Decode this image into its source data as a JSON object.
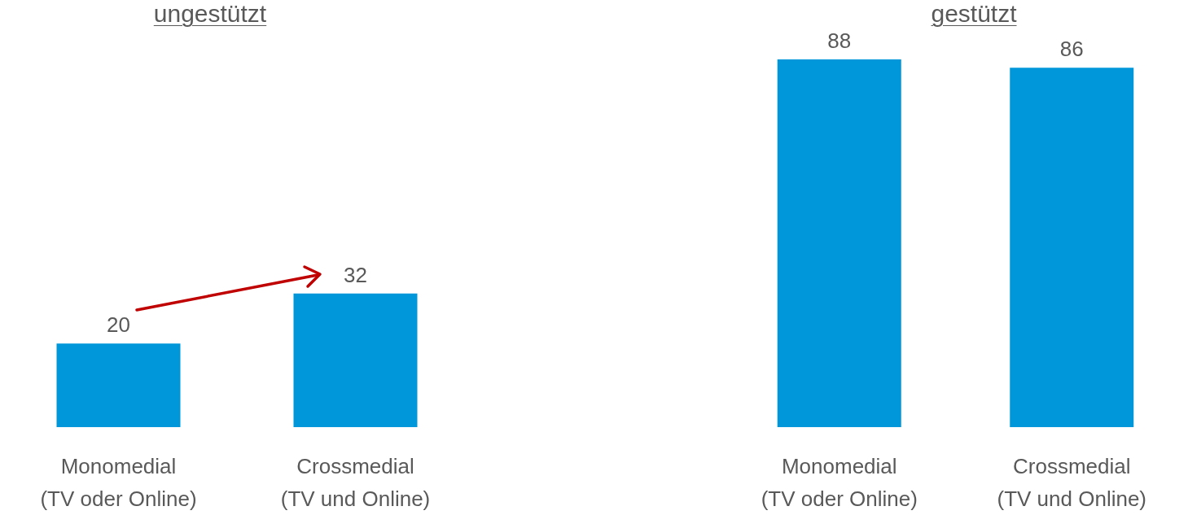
{
  "chart_data": [
    {
      "type": "bar",
      "title": "ungestützt",
      "categories": [
        "Monomedial\n(TV oder Online)",
        "Crossmedial\n(TV und Online)"
      ],
      "values": [
        20,
        32
      ],
      "color": "#0097da",
      "data_labels": true,
      "tick_labels": "x"
    },
    {
      "type": "bar",
      "title": "gestützt",
      "categories": [
        "Monomedial\n(TV oder Online)",
        "Crossmedial\n(TV und Online)"
      ],
      "values": [
        88,
        86
      ],
      "color": "#0097da",
      "data_labels": true,
      "tick_labels": "x"
    }
  ]
}
